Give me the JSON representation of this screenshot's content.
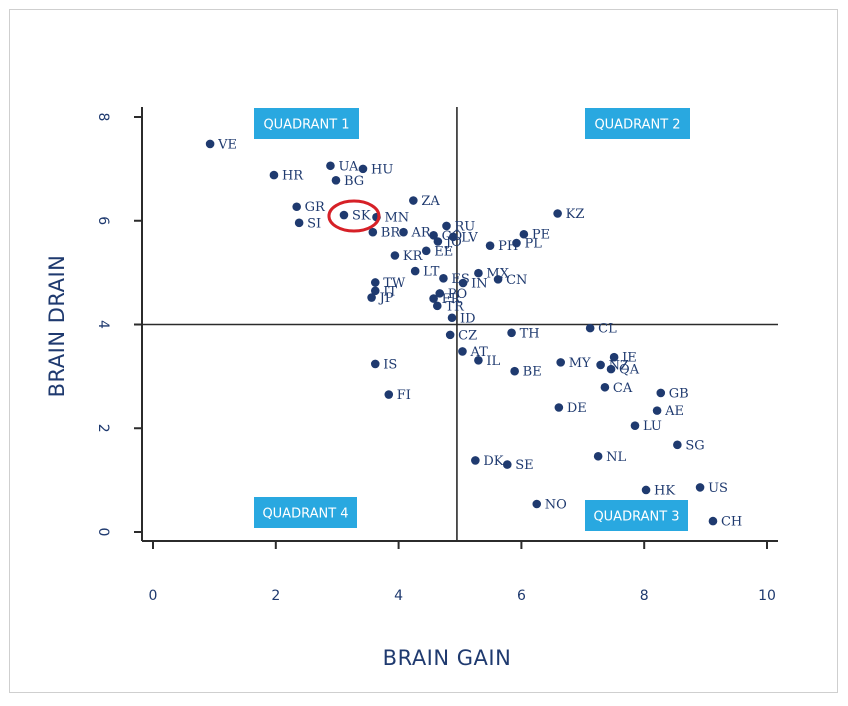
{
  "chart_data": {
    "type": "scatter",
    "xlabel": "BRAIN GAIN",
    "ylabel": "BRAIN DRAIN",
    "xlim": [
      0,
      10
    ],
    "ylim": [
      0,
      8
    ],
    "x_ticks": [
      "0",
      "2",
      "4",
      "6",
      "8",
      "10"
    ],
    "y_ticks": [
      "0",
      "2",
      "4",
      "6",
      "8"
    ],
    "dividers": {
      "x": 4.95,
      "y": 4
    },
    "quadrants": [
      "QUADRANT 1",
      "QUADRANT 2",
      "QUADRANT 3",
      "QUADRANT 4"
    ],
    "highlight": "SK",
    "highlight_color": "#d62027",
    "point_color": "#1f3a6f",
    "quadrant_color": "#29a8e0",
    "points": [
      {
        "label": "VE",
        "x": 0.93,
        "y": 7.48
      },
      {
        "label": "HR",
        "x": 1.97,
        "y": 6.88
      },
      {
        "label": "UA",
        "x": 2.89,
        "y": 7.06
      },
      {
        "label": "HU",
        "x": 3.42,
        "y": 7.0
      },
      {
        "label": "BG",
        "x": 2.98,
        "y": 6.78
      },
      {
        "label": "GR",
        "x": 2.34,
        "y": 6.27
      },
      {
        "label": "SI",
        "x": 2.38,
        "y": 5.96
      },
      {
        "label": "SK",
        "x": 3.11,
        "y": 6.11
      },
      {
        "label": "MN",
        "x": 3.64,
        "y": 6.07
      },
      {
        "label": "ZA",
        "x": 4.24,
        "y": 6.39
      },
      {
        "label": "BR",
        "x": 3.58,
        "y": 5.78
      },
      {
        "label": "AR",
        "x": 4.08,
        "y": 5.78
      },
      {
        "label": "CO",
        "x": 4.57,
        "y": 5.72
      },
      {
        "label": "RU",
        "x": 4.78,
        "y": 5.9
      },
      {
        "label": "LV",
        "x": 4.89,
        "y": 5.69
      },
      {
        "label": "JO",
        "x": 4.64,
        "y": 5.6
      },
      {
        "label": "EE",
        "x": 4.45,
        "y": 5.42
      },
      {
        "label": "KR",
        "x": 3.94,
        "y": 5.33
      },
      {
        "label": "LT",
        "x": 4.27,
        "y": 5.03
      },
      {
        "label": "ES",
        "x": 4.73,
        "y": 4.89
      },
      {
        "label": "MX",
        "x": 5.3,
        "y": 4.99
      },
      {
        "label": "CN",
        "x": 5.62,
        "y": 4.87
      },
      {
        "label": "IN",
        "x": 5.05,
        "y": 4.8
      },
      {
        "label": "TW",
        "x": 3.62,
        "y": 4.81
      },
      {
        "label": "IT",
        "x": 3.62,
        "y": 4.65
      },
      {
        "label": "JP",
        "x": 3.56,
        "y": 4.52
      },
      {
        "label": "PO",
        "x": 4.67,
        "y": 4.6
      },
      {
        "label": "FR",
        "x": 4.57,
        "y": 4.5
      },
      {
        "label": "TR",
        "x": 4.63,
        "y": 4.36
      },
      {
        "label": "ID",
        "x": 4.87,
        "y": 4.13
      },
      {
        "label": "PH",
        "x": 5.49,
        "y": 5.52
      },
      {
        "label": "PL",
        "x": 5.92,
        "y": 5.57
      },
      {
        "label": "PE",
        "x": 6.04,
        "y": 5.74
      },
      {
        "label": "KZ",
        "x": 6.59,
        "y": 6.14
      },
      {
        "label": "CL",
        "x": 7.12,
        "y": 3.93
      },
      {
        "label": "TH",
        "x": 5.84,
        "y": 3.84
      },
      {
        "label": "CZ",
        "x": 4.84,
        "y": 3.8
      },
      {
        "label": "AT",
        "x": 5.04,
        "y": 3.48
      },
      {
        "label": "IL",
        "x": 5.3,
        "y": 3.31
      },
      {
        "label": "BE",
        "x": 5.89,
        "y": 3.1
      },
      {
        "label": "MY",
        "x": 6.64,
        "y": 3.27
      },
      {
        "label": "IE",
        "x": 7.51,
        "y": 3.37
      },
      {
        "label": "NZ",
        "x": 7.29,
        "y": 3.22
      },
      {
        "label": "QA",
        "x": 7.46,
        "y": 3.14
      },
      {
        "label": "CA",
        "x": 7.36,
        "y": 2.79
      },
      {
        "label": "GB",
        "x": 8.27,
        "y": 2.68
      },
      {
        "label": "AE",
        "x": 8.21,
        "y": 2.34
      },
      {
        "label": "DE",
        "x": 6.61,
        "y": 2.4
      },
      {
        "label": "LU",
        "x": 7.85,
        "y": 2.05
      },
      {
        "label": "SG",
        "x": 8.54,
        "y": 1.68
      },
      {
        "label": "NL",
        "x": 7.25,
        "y": 1.46
      },
      {
        "label": "IS",
        "x": 3.62,
        "y": 3.24
      },
      {
        "label": "FI",
        "x": 3.84,
        "y": 2.65
      },
      {
        "label": "DK",
        "x": 5.25,
        "y": 1.38
      },
      {
        "label": "SE",
        "x": 5.77,
        "y": 1.3
      },
      {
        "label": "NO",
        "x": 6.25,
        "y": 0.54
      },
      {
        "label": "HK",
        "x": 8.03,
        "y": 0.81
      },
      {
        "label": "US",
        "x": 8.91,
        "y": 0.86
      },
      {
        "label": "CH",
        "x": 9.12,
        "y": 0.21
      }
    ]
  }
}
